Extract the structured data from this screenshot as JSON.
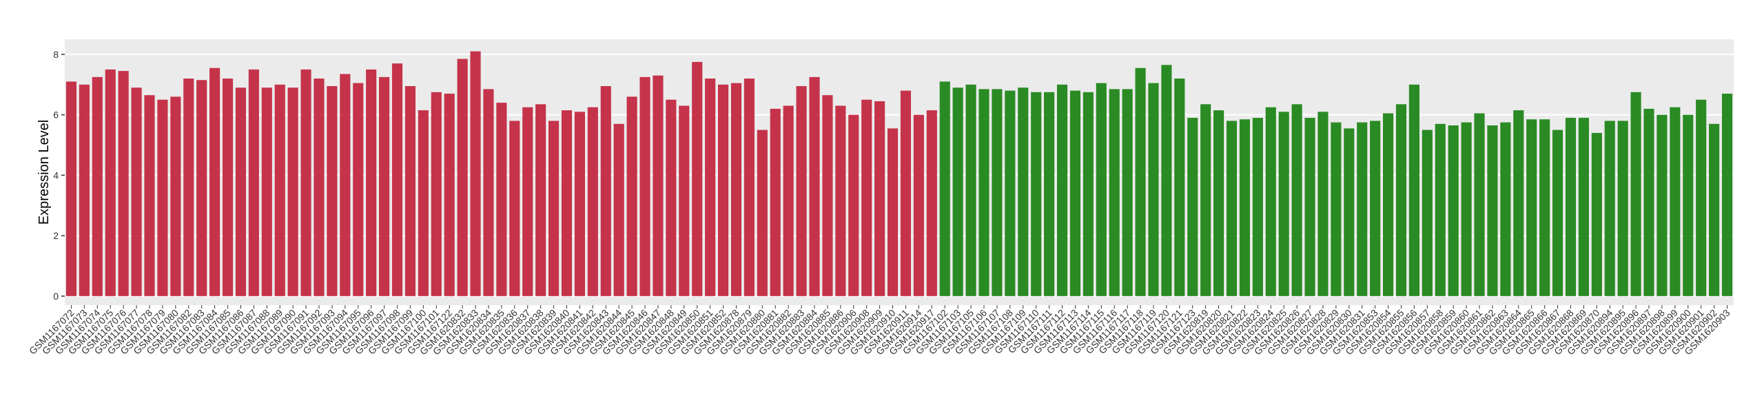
{
  "chart_data": {
    "type": "bar",
    "y_label": "Expression Level",
    "categories": [
      "GSM1167072",
      "GSM1167073",
      "GSM1167074",
      "GSM1167075",
      "GSM1167076",
      "GSM1167077",
      "GSM1167078",
      "GSM1167079",
      "GSM1167080",
      "GSM1167082",
      "GSM1167083",
      "GSM1167084",
      "GSM1167085",
      "GSM1167086",
      "GSM1167087",
      "GSM1167088",
      "GSM1167089",
      "GSM1167090",
      "GSM1167091",
      "GSM1167092",
      "GSM1167093",
      "GSM1167094",
      "GSM1167095",
      "GSM1167096",
      "GSM1167097",
      "GSM1167098",
      "GSM1167099",
      "GSM1167100",
      "GSM1167101",
      "GSM1167122",
      "GSM1620832",
      "GSM1620833",
      "GSM1620834",
      "GSM1620835",
      "GSM1620836",
      "GSM1620837",
      "GSM1620838",
      "GSM1620839",
      "GSM1620840",
      "GSM1620841",
      "GSM1620842",
      "GSM1620843",
      "GSM1620844",
      "GSM1620845",
      "GSM1620846",
      "GSM1620847",
      "GSM1620848",
      "GSM1620849",
      "GSM1620850",
      "GSM1620851",
      "GSM1620852",
      "GSM1620878",
      "GSM1620879",
      "GSM1620880",
      "GSM1620881",
      "GSM1620882",
      "GSM1620883",
      "GSM1620884",
      "GSM1620885",
      "GSM1620886",
      "GSM1620906",
      "GSM1620908",
      "GSM1620909",
      "GSM1620910",
      "GSM1620911",
      "GSM1620914",
      "GSM1620917",
      "GSM1167102",
      "GSM1167103",
      "GSM1167105",
      "GSM1167106",
      "GSM1167107",
      "GSM1167108",
      "GSM1167109",
      "GSM1167110",
      "GSM1167111",
      "GSM1167112",
      "GSM1167113",
      "GSM1167114",
      "GSM1167115",
      "GSM1167116",
      "GSM1167117",
      "GSM1167118",
      "GSM1167119",
      "GSM1167120",
      "GSM1167121",
      "GSM1167123",
      "GSM1620819",
      "GSM1620820",
      "GSM1620821",
      "GSM1620822",
      "GSM1620823",
      "GSM1620824",
      "GSM1620825",
      "GSM1620826",
      "GSM1620827",
      "GSM1620828",
      "GSM1620829",
      "GSM1620830",
      "GSM1620831",
      "GSM1620853",
      "GSM1620854",
      "GSM1620855",
      "GSM1620856",
      "GSM1620857",
      "GSM1620858",
      "GSM1620859",
      "GSM1620860",
      "GSM1620861",
      "GSM1620862",
      "GSM1620863",
      "GSM1620864",
      "GSM1620865",
      "GSM1620866",
      "GSM1620867",
      "GSM1620868",
      "GSM1620869",
      "GSM1620870",
      "GSM1620894",
      "GSM1620895",
      "GSM1620896",
      "GSM1620897",
      "GSM1620898",
      "GSM1620899",
      "GSM1620900",
      "GSM1620901",
      "GSM1620902",
      "GSM1620903"
    ],
    "series": [
      {
        "color": "#c5334a",
        "values": [
          7.1,
          7.0,
          7.25,
          7.5,
          7.45,
          6.9,
          6.65,
          6.5,
          6.6,
          7.2,
          7.15,
          7.55,
          7.2,
          6.9,
          7.5,
          6.9,
          7.0,
          6.9,
          7.5,
          7.2,
          6.95,
          7.35,
          7.05,
          7.5,
          7.25,
          7.7,
          6.95,
          6.15,
          6.75,
          6.7,
          7.85,
          8.1,
          6.85,
          6.4,
          5.8,
          6.25,
          6.35,
          5.8,
          6.15,
          6.1,
          6.25,
          6.95,
          5.7,
          6.6,
          7.25,
          7.3,
          6.5,
          6.3,
          7.75,
          7.2,
          7.0,
          7.05,
          7.2,
          5.5,
          6.2,
          6.3,
          6.95,
          7.25,
          6.65,
          6.3,
          6.0,
          6.5,
          6.45,
          5.55,
          6.8,
          6.0,
          6.15,
          null,
          null,
          null,
          null,
          null,
          null,
          null,
          null,
          null,
          null,
          null,
          null,
          null,
          null,
          null,
          null,
          null,
          null,
          null,
          null,
          null,
          null,
          null,
          null,
          null,
          null,
          null,
          null,
          null,
          null,
          null,
          null,
          null,
          null,
          null,
          null,
          null,
          null,
          null,
          null,
          null,
          null,
          null,
          null,
          null,
          null,
          null,
          null,
          null,
          null,
          null,
          null,
          null,
          null,
          null,
          null,
          null,
          null,
          null,
          null,
          null
        ]
      },
      {
        "color": "#2a8b24",
        "values": [
          null,
          null,
          null,
          null,
          null,
          null,
          null,
          null,
          null,
          null,
          null,
          null,
          null,
          null,
          null,
          null,
          null,
          null,
          null,
          null,
          null,
          null,
          null,
          null,
          null,
          null,
          null,
          null,
          null,
          null,
          null,
          null,
          null,
          null,
          null,
          null,
          null,
          null,
          null,
          null,
          null,
          null,
          null,
          null,
          null,
          null,
          null,
          null,
          null,
          null,
          null,
          null,
          null,
          null,
          null,
          null,
          null,
          null,
          null,
          null,
          null,
          null,
          null,
          null,
          null,
          null,
          null,
          7.1,
          6.9,
          7.0,
          6.85,
          6.85,
          6.8,
          6.9,
          6.75,
          6.75,
          7.0,
          6.8,
          6.75,
          7.05,
          6.85,
          6.85,
          7.55,
          7.05,
          7.65,
          7.2,
          5.9,
          6.35,
          6.15,
          5.8,
          5.85,
          5.9,
          6.25,
          6.1,
          6.35,
          5.9,
          6.1,
          5.75,
          5.55,
          5.75,
          5.8,
          6.05,
          6.35,
          7.0,
          5.5,
          5.7,
          5.65,
          5.75,
          6.05,
          5.65,
          5.75,
          6.15,
          5.85,
          5.85,
          5.5,
          5.9,
          5.9,
          5.4,
          5.8,
          5.8,
          6.75,
          6.2,
          6.0,
          6.25,
          6.0,
          6.5,
          5.7,
          6.7
        ]
      }
    ],
    "ylim": [
      -0.3,
      8.5
    ],
    "yticks": [
      0,
      2,
      4,
      6,
      8
    ],
    "grid": true
  }
}
